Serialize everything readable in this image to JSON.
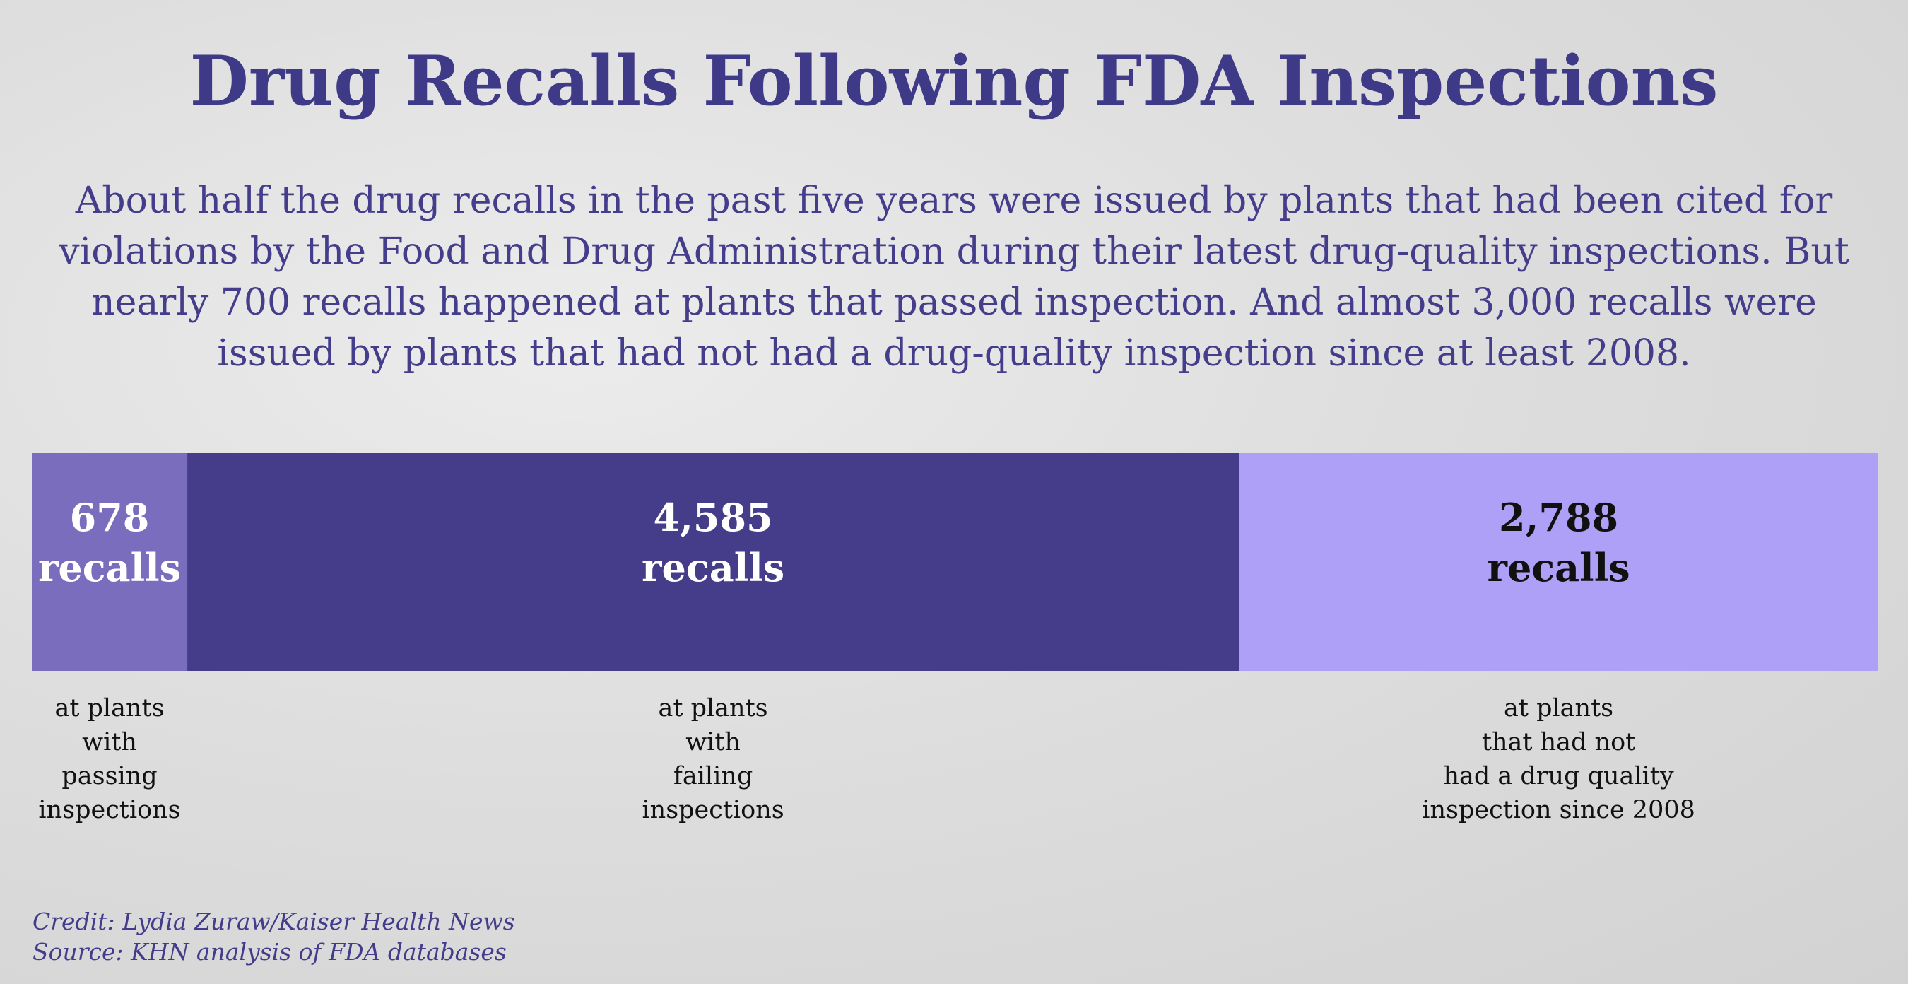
{
  "title": "Drug Recalls Following FDA Inspections",
  "subtitle": "About half the drug recalls in the past five years were issued by plants that had been cited for violations by the Food and Drug Administration during their latest drug-quality inspections. But nearly 700 recalls happened at plants that passed inspection. And almost 3,000 recalls were issued by plants that had not had a drug-quality inspection since at least 2008.",
  "credit": "Credit: Lydia Zuraw/Kaiser Health News",
  "source": "Source: KHN analysis of FDA databases",
  "colors": {
    "passing": "#7b6dbe",
    "failing": "#453d89",
    "no_inspection": "#aea0f6",
    "title": "#3f3a87"
  },
  "chart_data": {
    "type": "bar",
    "orientation": "horizontal-stacked",
    "title": "Drug Recalls Following FDA Inspections",
    "unit_label": "recalls",
    "categories": [
      "at plants with passing inspections",
      "at plants with failing inspections",
      "at plants that had not had a drug quality inspection since 2008"
    ],
    "values": [
      678,
      4585,
      2788
    ],
    "value_labels": [
      "678",
      "4,585",
      "2,788"
    ],
    "category_label_lines": [
      [
        "at plants",
        "with",
        "passing",
        "inspections"
      ],
      [
        "at plants",
        "with",
        "failing",
        "inspections"
      ],
      [
        "at plants",
        "that had not",
        "had a drug quality",
        "inspection since 2008"
      ]
    ],
    "label_colors": [
      "#ffffff",
      "#ffffff",
      "#111111"
    ],
    "segment_colors": [
      "#7b6dbe",
      "#453d89",
      "#aea0f6"
    ]
  }
}
